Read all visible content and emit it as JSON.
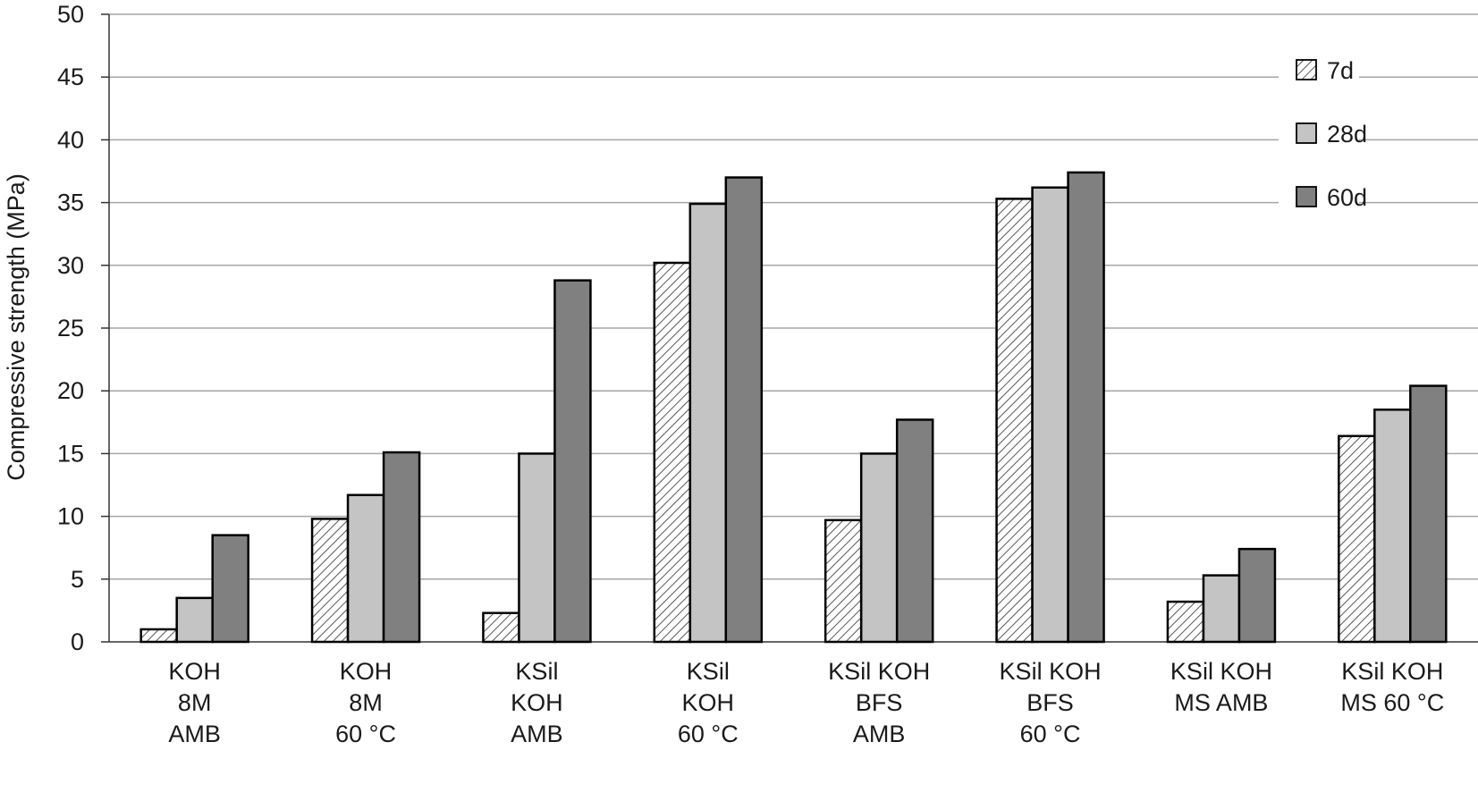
{
  "chart_data": {
    "type": "bar",
    "title": "",
    "xlabel": "",
    "ylabel": "Compressive strength (MPa)",
    "ylim": [
      0,
      50
    ],
    "yticks": [
      0,
      5,
      10,
      15,
      20,
      25,
      30,
      35,
      40,
      45,
      50
    ],
    "grid": true,
    "legend_position": "top-right",
    "categories": [
      [
        "KOH",
        "8M",
        "AMB"
      ],
      [
        "KOH",
        "8M",
        "60 °C"
      ],
      [
        "KSil",
        "KOH",
        "AMB"
      ],
      [
        "KSil",
        "KOH",
        "60 °C"
      ],
      [
        "KSil KOH",
        "BFS",
        "AMB"
      ],
      [
        "KSil KOH",
        "BFS",
        "60 °C"
      ],
      [
        "KSil KOH",
        "MS AMB"
      ],
      [
        "KSil KOH",
        "MS 60 °C"
      ]
    ],
    "series": [
      {
        "name": "7d",
        "pattern": "hatch",
        "color": "#ffffff",
        "values": [
          1.0,
          9.8,
          2.3,
          30.2,
          9.7,
          35.3,
          3.2,
          16.4
        ]
      },
      {
        "name": "28d",
        "pattern": "solid",
        "color": "#c4c4c4",
        "values": [
          3.5,
          11.7,
          15.0,
          34.9,
          15.0,
          36.2,
          5.3,
          18.5
        ]
      },
      {
        "name": "60d",
        "pattern": "solid",
        "color": "#808080",
        "values": [
          8.5,
          15.1,
          28.8,
          37.0,
          17.7,
          37.4,
          7.4,
          20.4
        ]
      }
    ]
  }
}
